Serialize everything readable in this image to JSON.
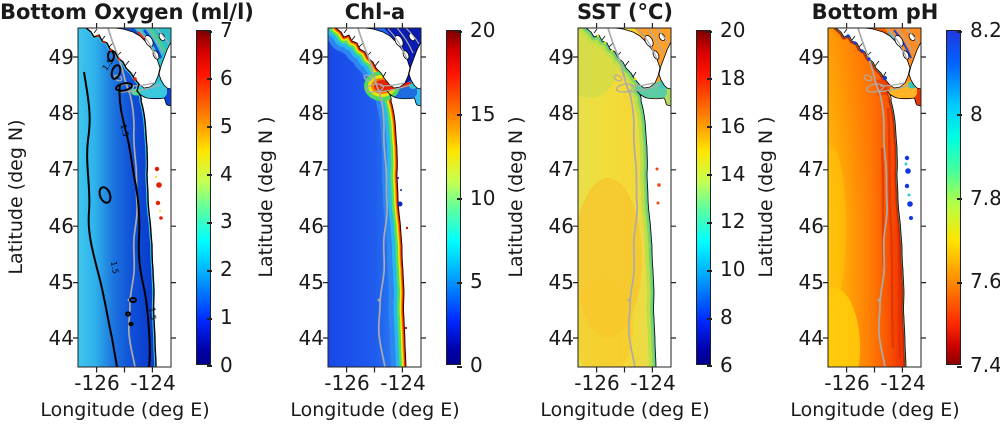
{
  "figure": {
    "background": "#ffffff",
    "region": "Pacific Northwest coast (Vancouver Island to Oregon)"
  },
  "panels": [
    {
      "title": "Bottom Oxygen (ml/l)",
      "ylabel": "Latitude (deg N)",
      "xlabel": "Longitude (deg E)",
      "yticks": [
        "49",
        "48",
        "47",
        "46",
        "45",
        "44"
      ],
      "xticks": [
        "-126",
        "-124"
      ],
      "colorbar": {
        "ticks": [
          "7",
          "6",
          "5",
          "4",
          "3",
          "2",
          "1",
          "0"
        ],
        "colormap": "jet"
      },
      "contour_labels": [
        {
          "text": "1.5"
        },
        {
          "text": "1.5"
        },
        {
          "text": "1.5"
        },
        {
          "text": "1.5"
        }
      ]
    },
    {
      "title": "Chl-a",
      "ylabel": "Latitude (deg N )",
      "xlabel": "Longitude (deg E)",
      "yticks": [
        "49",
        "48",
        "47",
        "46",
        "45",
        "44"
      ],
      "xticks": [
        "-126",
        "-124"
      ],
      "colorbar": {
        "ticks": [
          "20",
          "15",
          "10",
          "5",
          "0"
        ],
        "colormap": "jet"
      }
    },
    {
      "title": "SST (°C)",
      "ylabel": "Latitude (deg N )",
      "xlabel": "Longitude (deg E)",
      "yticks": [
        "49",
        "48",
        "47",
        "46",
        "45",
        "44"
      ],
      "xticks": [
        "-126",
        "-124"
      ],
      "colorbar": {
        "ticks": [
          "20",
          "18",
          "16",
          "14",
          "12",
          "10",
          "8",
          "6"
        ],
        "colormap": "jet"
      }
    },
    {
      "title": "Bottom pH",
      "ylabel": "Latitude (deg N )",
      "xlabel": "Longitude (deg E)",
      "yticks": [
        "49",
        "48",
        "47",
        "46",
        "45",
        "44"
      ],
      "xticks": [
        "-126",
        "-124"
      ],
      "colorbar": {
        "ticks": [
          "8.2",
          "8",
          "7.8",
          "7.6",
          "7.4"
        ],
        "colormap": "jet reversed"
      }
    }
  ],
  "chart_data": [
    {
      "type": "heatmap",
      "title": "Bottom Oxygen (ml/l)",
      "xlabel": "Longitude (deg E)",
      "ylabel": "Latitude (deg N)",
      "x_ticks": [
        -126,
        -124
      ],
      "y_ticks": [
        49,
        48,
        47,
        46,
        45,
        44
      ],
      "x_range": [
        -127,
        -123.5
      ],
      "y_range": [
        43.5,
        49.5
      ],
      "colormap": "jet",
      "colorbar_range": [
        0,
        7
      ],
      "colorbar_ticks": [
        7,
        6,
        5,
        4,
        3,
        2,
        1,
        0
      ],
      "contour_levels_black": [
        1.5
      ],
      "field_summary": "Shelf bottom water 0.5-1.5 ml/l (dark blue), offshore 2-2.5 ml/l (cyan-blue); black 1.5 ml/l hypoxia contours run alongshore; small red high-oxygen patches in shallow coastal bays and Strait of Georgia"
    },
    {
      "type": "heatmap",
      "title": "Chl-a",
      "xlabel": "Longitude (deg E)",
      "ylabel": "Latitude (deg N)",
      "x_ticks": [
        -126,
        -124
      ],
      "y_ticks": [
        49,
        48,
        47,
        46,
        45,
        44
      ],
      "x_range": [
        -127,
        -123.5
      ],
      "y_range": [
        43.5,
        49.5
      ],
      "colormap": "jet",
      "colorbar_range": [
        0,
        20
      ],
      "colorbar_ticks": [
        20,
        15,
        10,
        5,
        0
      ],
      "field_summary": "Oligotrophic offshore (1-3), narrow 15-20 bloom band hugging the coast, strongest off west Vancouver Island and at the Juan de Fuca mouth; Strait of Georgia near 0"
    },
    {
      "type": "heatmap",
      "title": "SST (oC)",
      "xlabel": "Longitude (deg E)",
      "ylabel": "Latitude (deg N)",
      "x_ticks": [
        -126,
        -124
      ],
      "y_ticks": [
        49,
        48,
        47,
        46,
        45,
        44
      ],
      "x_range": [
        -127,
        -123.5
      ],
      "y_range": [
        43.5,
        49.5
      ],
      "colormap": "jet",
      "colorbar_range": [
        6,
        20
      ],
      "colorbar_ticks": [
        20,
        18,
        16,
        14,
        12,
        10,
        8,
        6
      ],
      "field_summary": "14-15 C offshore (yellow), 12-13 C coastal upwelling band (green), ~11-12 C in Strait of Juan de Fuca, ~16-17 C in Strait of Georgia"
    },
    {
      "type": "heatmap",
      "title": "Bottom pH",
      "xlabel": "Longitude (deg E)",
      "ylabel": "Latitude (deg N)",
      "x_ticks": [
        -126,
        -124
      ],
      "y_ticks": [
        49,
        48,
        47,
        46,
        45,
        44
      ],
      "x_range": [
        -127,
        -123.5
      ],
      "y_range": [
        43.5,
        49.5
      ],
      "colormap": "jet reversed",
      "colorbar_range": [
        7.4,
        8.2
      ],
      "colorbar_ticks": [
        8.2,
        8,
        7.8,
        7.6,
        7.4
      ],
      "field_summary": "Corrosive shelf bottom water 7.5-7.6 (red), 7.6-7.7 offshore (orange-yellow), ~7.9-8.2 (cyan-blue) in shallow coastal bays and inlets"
    }
  ],
  "map_overlays": {
    "gray_line": "coastline / 200 m shelf-break isobath",
    "black_line_panel1": "1.5 ml/l oxygen contour"
  }
}
